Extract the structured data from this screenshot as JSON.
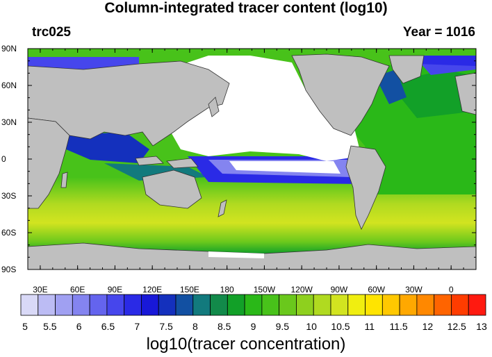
{
  "title": "Column-integrated tracer content (log10)",
  "left_label": "trc025",
  "right_label": "Year = 1016",
  "lat_labels": [
    "90N",
    "60N",
    "30N",
    "0",
    "30S",
    "60S",
    "90S"
  ],
  "lon_labels": [
    "30E",
    "60E",
    "90E",
    "120E",
    "150E",
    "180",
    "150W",
    "120W",
    "90W",
    "60W",
    "30W",
    "0"
  ],
  "colorbar": {
    "title": "log10(tracer concentration)",
    "tick_labels": [
      "5",
      "5.5",
      "6",
      "6.5",
      "7",
      "7.5",
      "8",
      "8.5",
      "9",
      "9.5",
      "10",
      "10.5",
      "11",
      "11.5",
      "12",
      "12.5",
      "13"
    ],
    "colors": [
      "#d9d9f7",
      "#bcbcf4",
      "#a0a0f2",
      "#8484f0",
      "#6464ee",
      "#4646ec",
      "#2a2ae6",
      "#1818d8",
      "#1430bd",
      "#1250a2",
      "#127a7d",
      "#128a4a",
      "#12a028",
      "#2ab818",
      "#48c21a",
      "#6ac81c",
      "#8ed01e",
      "#b0da20",
      "#d2e420",
      "#f0ee10",
      "#ffe400",
      "#ffc800",
      "#ffa800",
      "#ff8800",
      "#ff6400",
      "#ff3c00",
      "#ff1a10"
    ]
  },
  "map_colors": {
    "land": "#bfbfbf",
    "coast": "#333333",
    "no_tracer": "#ffffff"
  }
}
